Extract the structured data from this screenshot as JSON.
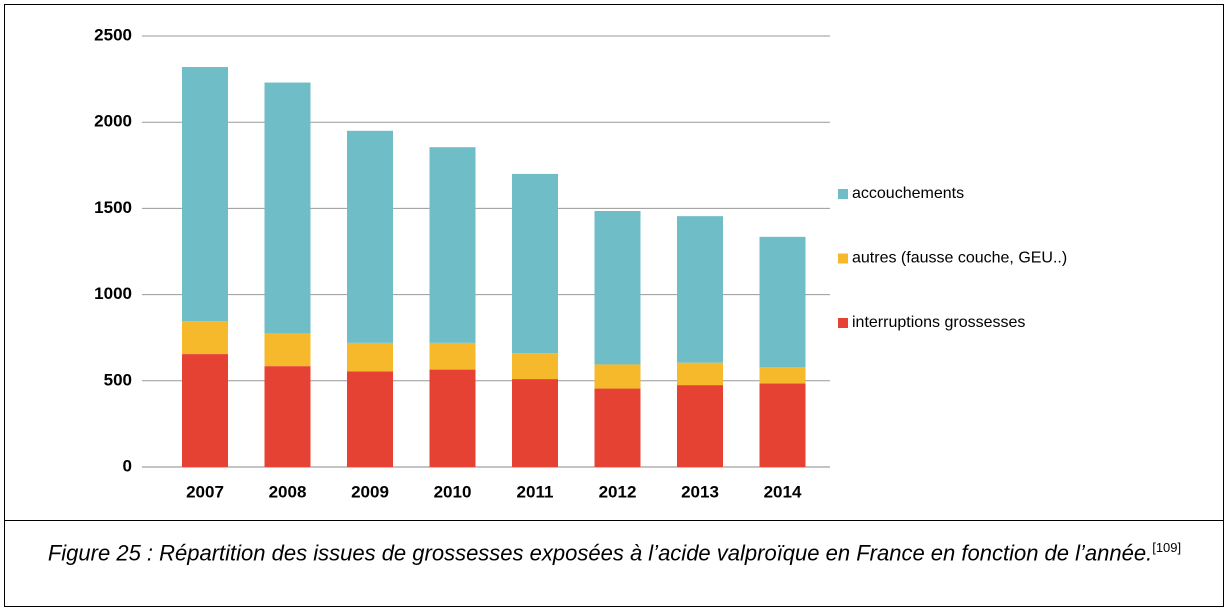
{
  "chart_data": {
    "type": "bar",
    "stacked": true,
    "categories": [
      "2007",
      "2008",
      "2009",
      "2010",
      "2011",
      "2012",
      "2013",
      "2014"
    ],
    "series": [
      {
        "name": "interruptions grossesses",
        "color": "#e64233",
        "values": [
          655,
          585,
          555,
          565,
          510,
          455,
          475,
          485
        ]
      },
      {
        "name": "autres (fausse couche, GEU..)",
        "color": "#f6b92b",
        "values": [
          190,
          190,
          165,
          155,
          150,
          140,
          130,
          95
        ]
      },
      {
        "name": "accouchements",
        "color": "#6fbdc6",
        "values": [
          1475,
          1455,
          1230,
          1135,
          1040,
          890,
          850,
          755
        ]
      }
    ],
    "ylim": [
      0,
      2500
    ],
    "yticks": [
      0,
      500,
      1000,
      1500,
      2000,
      2500
    ],
    "grid": true,
    "legend": "right",
    "caption": "Figure 25 : Répartition des issues de grossesses exposées à l’acide valproïque en France en fonction de l’année.",
    "caption_ref": "[109]"
  }
}
